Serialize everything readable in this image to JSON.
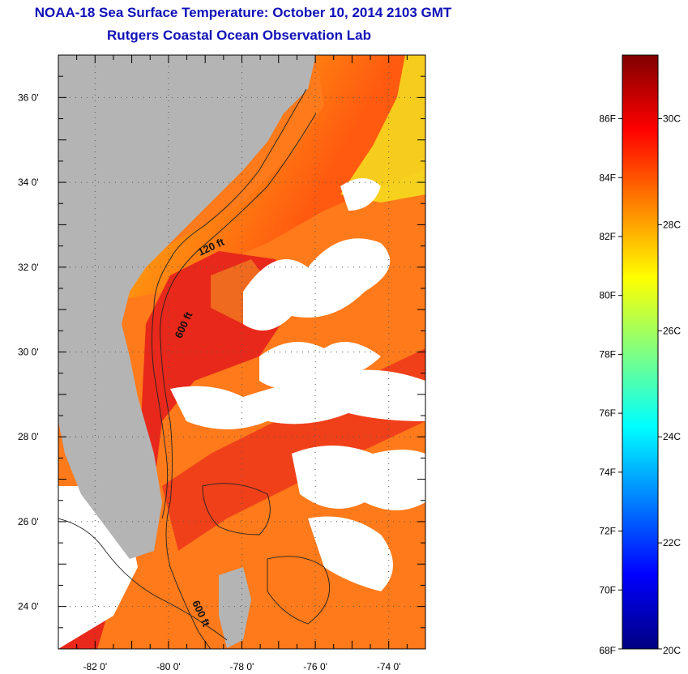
{
  "title": "NOAA-18 Sea Surface Temperature:  October 10, 2014 2103 GMT",
  "subtitle": "Rutgers Coastal Ocean Observation Lab",
  "map": {
    "lon_range": [
      -83,
      -73
    ],
    "lat_range": [
      23,
      37
    ],
    "lat_ticks": [
      {
        "value": 24,
        "label": "24 0'"
      },
      {
        "value": 26,
        "label": "26 0'"
      },
      {
        "value": 28,
        "label": "28 0'"
      },
      {
        "value": 30,
        "label": "30 0'"
      },
      {
        "value": 32,
        "label": "32 0'"
      },
      {
        "value": 34,
        "label": "34 0'"
      },
      {
        "value": 36,
        "label": "36 0'"
      }
    ],
    "lon_ticks": [
      {
        "value": -82,
        "label": "-82 0'"
      },
      {
        "value": -80,
        "label": "-80 0'"
      },
      {
        "value": -78,
        "label": "-78 0'"
      },
      {
        "value": -76,
        "label": "-76 0'"
      },
      {
        "value": -74,
        "label": "-74 0'"
      }
    ],
    "contour_labels": [
      {
        "text": "120 ft",
        "lon": -78.8,
        "lat": 32.4,
        "angle": -25
      },
      {
        "text": "600 ft",
        "lon": -79.5,
        "lat": 30.6,
        "angle": -65
      },
      {
        "text": "600 ft",
        "lon": -79.2,
        "lat": 23.8,
        "angle": 65
      }
    ],
    "colors": {
      "land": "#b4b4b4",
      "cloud": "#ffffff",
      "contour": "#222222",
      "grid": "#555555"
    }
  },
  "colorbar": {
    "min_c": 20,
    "max_c": 31.2,
    "fahrenheit_labels": [
      {
        "value": 68,
        "label": "68F"
      },
      {
        "value": 70,
        "label": "70F"
      },
      {
        "value": 72,
        "label": "72F"
      },
      {
        "value": 74,
        "label": "74F"
      },
      {
        "value": 76,
        "label": "76F"
      },
      {
        "value": 78,
        "label": "78F"
      },
      {
        "value": 80,
        "label": "80F"
      },
      {
        "value": 82,
        "label": "82F"
      },
      {
        "value": 84,
        "label": "84F"
      },
      {
        "value": 86,
        "label": "86F"
      }
    ],
    "celsius_labels": [
      {
        "value": 20,
        "label": "20C"
      },
      {
        "value": 22,
        "label": "22C"
      },
      {
        "value": 24,
        "label": "24C"
      },
      {
        "value": 26,
        "label": "26C"
      },
      {
        "value": 28,
        "label": "28C"
      },
      {
        "value": 30,
        "label": "30C"
      }
    ],
    "stops": [
      "#000080",
      "#0000ff",
      "#0080ff",
      "#00ffff",
      "#80ff80",
      "#ffff00",
      "#ff8000",
      "#ff0000",
      "#800000"
    ]
  }
}
